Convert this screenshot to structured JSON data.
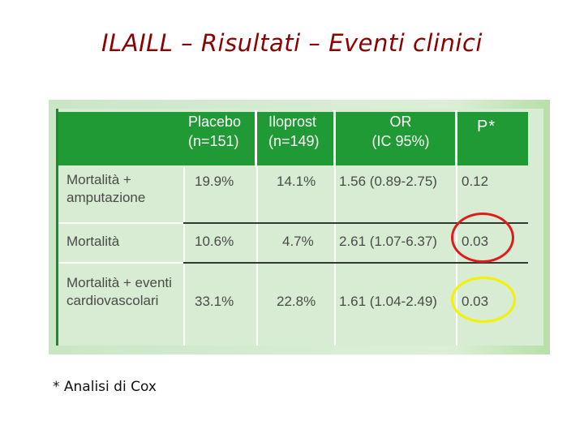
{
  "slide": {
    "title": "ILAILL – Risultati – Eventi clinici",
    "footnote": "* Analisi di Cox"
  },
  "table": {
    "columns": {
      "placebo": [
        "Placebo",
        "(n=151)"
      ],
      "iloprost": [
        "Iloprost",
        "(n=149)"
      ],
      "or": [
        "OR",
        "(IC 95%)"
      ],
      "p": "P*"
    },
    "rows": [
      {
        "label": [
          "Mortalità +",
          "amputazione"
        ],
        "placebo": "19.9%",
        "iloprost": "14.1%",
        "or": "1.56 (0.89-2.75)",
        "p": "0.12"
      },
      {
        "label": [
          "Mortalità"
        ],
        "placebo": "10.6%",
        "iloprost": "4.7%",
        "or": "2.61 (1.07-6.37)",
        "p": "0.03"
      },
      {
        "label": [
          "Mortalità + eventi",
          "cardiovascolari"
        ],
        "placebo": "33.1%",
        "iloprost": "22.8%",
        "or": "1.61 (1.04-2.49)",
        "p": "0.03"
      }
    ]
  },
  "highlights": {
    "row2_color": "#e11b1b",
    "row3_color": "#f2f200"
  },
  "colors": {
    "title": "#8b0000",
    "header_green": "#1f9a34",
    "table_bg": "#d7ecd3"
  }
}
